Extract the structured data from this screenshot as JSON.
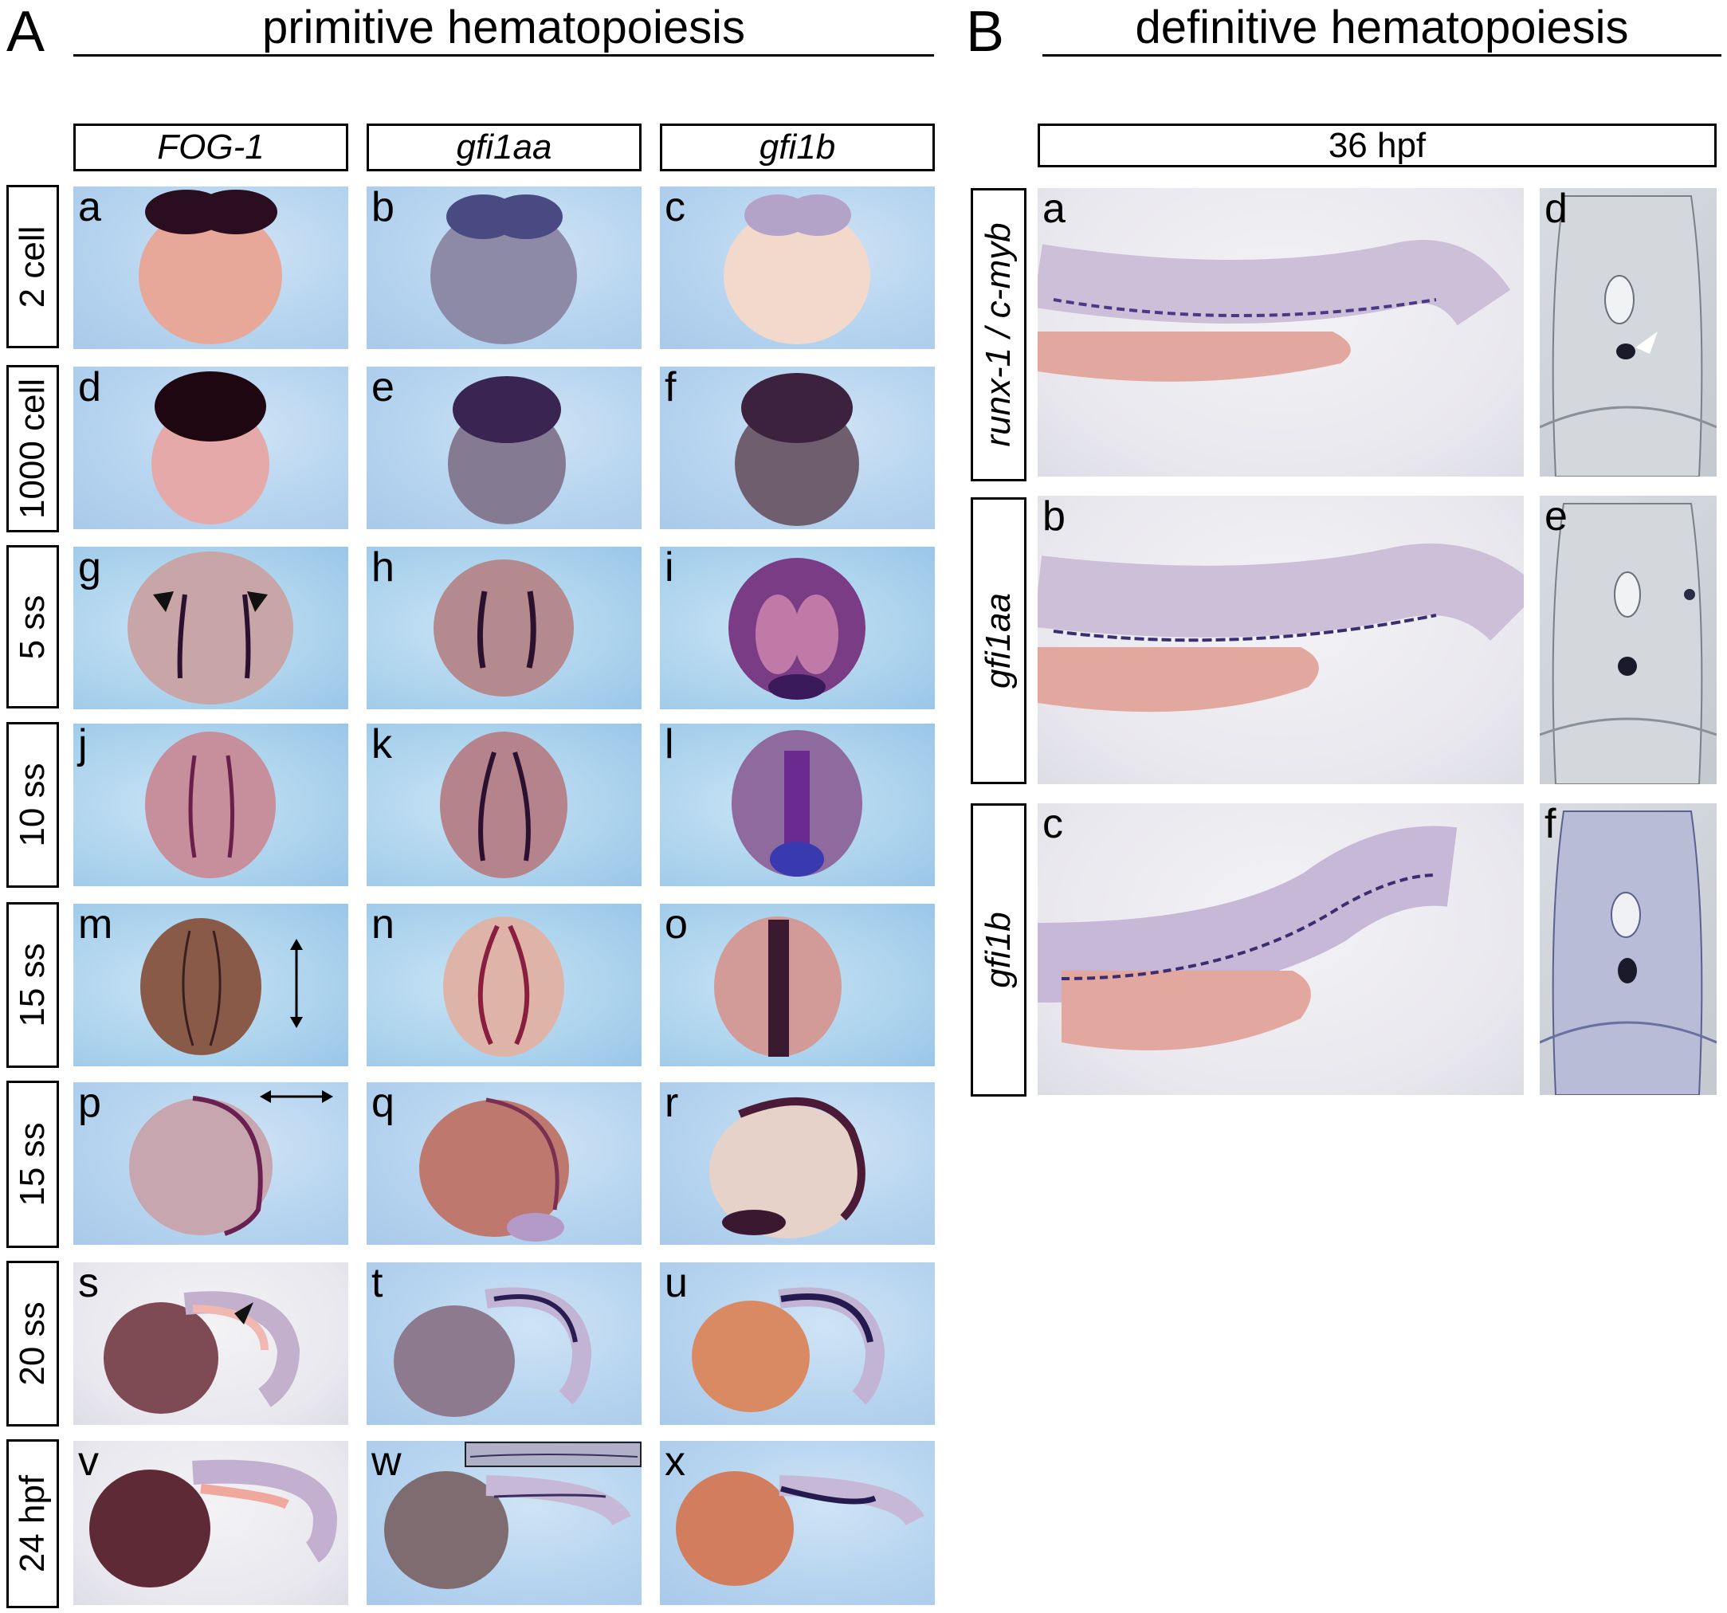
{
  "panel_a": {
    "letter": "A",
    "title": "primitive hematopoiesis",
    "columns": [
      "FOG-1",
      "gfi1aa",
      "gfi1b"
    ],
    "rows": [
      "2 cell",
      "1000 cell",
      "5 ss",
      "10 ss",
      "15 ss",
      "15 ss",
      "20 ss",
      "24 hpf"
    ],
    "sublabels": [
      "a",
      "b",
      "c",
      "d",
      "e",
      "f",
      "g",
      "h",
      "i",
      "j",
      "k",
      "l",
      "m",
      "n",
      "o",
      "p",
      "q",
      "r",
      "s",
      "t",
      "u",
      "v",
      "w",
      "x"
    ]
  },
  "panel_b": {
    "letter": "B",
    "title": "definitive hematopoiesis",
    "header": "36 hpf",
    "rows": [
      "runx-1 / c-myb",
      "gfi1aa",
      "gfi1b"
    ],
    "sublabels_main": [
      "a",
      "b",
      "c"
    ],
    "sublabels_section": [
      "d",
      "e",
      "f"
    ]
  }
}
